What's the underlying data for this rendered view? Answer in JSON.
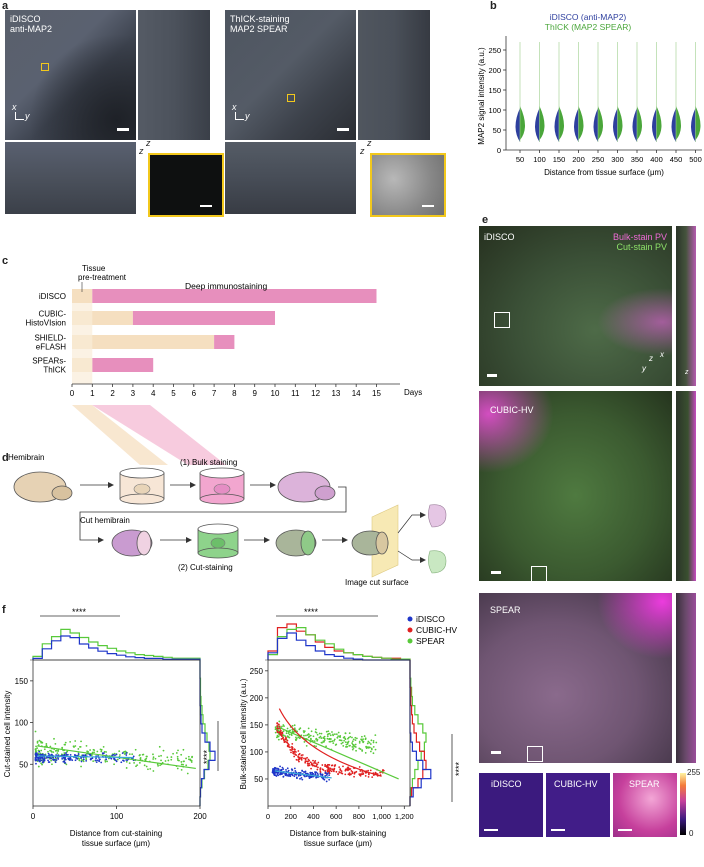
{
  "panels": {
    "a": "a",
    "b": "b",
    "c": "c",
    "d": "d",
    "e": "e",
    "f": "f"
  },
  "a": {
    "left_title_1": "iDISCO",
    "left_title_2": "anti-MAP2",
    "right_title_1": "ThICK-staining",
    "right_title_2": "MAP2 SPEAR",
    "axis_x": "x",
    "axis_y": "y",
    "axis_z": "z"
  },
  "b": {
    "legend": [
      "iDISCO (anti-MAP2)",
      "ThICK (MAP2 SPEAR)"
    ],
    "ylabel": "MAP2 signal intensity (a.u.)",
    "xlabel": "Distance from tissue surface (μm)",
    "yticks": [
      "0",
      "50",
      "100",
      "150",
      "200",
      "250"
    ],
    "xticks": [
      "50",
      "100",
      "150",
      "200",
      "250",
      "300",
      "350",
      "400",
      "450",
      "500"
    ],
    "colors": {
      "idisco": "#2e3f9e",
      "thick": "#4aa63a"
    }
  },
  "c": {
    "tissue_label_1": "Tissue",
    "tissue_label_2": "pre-treatment",
    "deep_label": "Deep immunostaining",
    "rows": [
      "iDISCO",
      "CUBIC-\nHistoVIsion",
      "SHIELD-\neFLASH",
      "SPEARs-\nThICK"
    ],
    "row_lines": [
      [
        "iDISCO"
      ],
      [
        "CUBIC-",
        "HistoVIsion"
      ],
      [
        "SHIELD-",
        "eFLASH"
      ],
      [
        "SPEARs-",
        "ThICK"
      ]
    ],
    "xticks": [
      "0",
      "1",
      "2",
      "3",
      "4",
      "5",
      "6",
      "7",
      "8",
      "9",
      "10",
      "11",
      "12",
      "13",
      "14",
      "15"
    ],
    "xlabel": "Days",
    "pretreat_end": [
      1,
      3,
      7,
      1
    ],
    "stain_end": [
      15,
      10,
      8,
      4
    ]
  },
  "d": {
    "hemibrain": "Hemibrain",
    "bulk": "(1) Bulk staining",
    "cut_hemibrain": "Cut hemibrain",
    "cut_staining": "(2) Cut-staining",
    "image_cut": "Image cut surface"
  },
  "e": {
    "labels": [
      "iDISCO",
      "CUBIC-HV",
      "SPEAR"
    ],
    "legend_bulk": "Bulk-stain PV",
    "legend_cut": "Cut-stain PV",
    "axis_x": "x",
    "axis_y": "y",
    "axis_z": "z",
    "bottom_labels": [
      "iDISCO",
      "CUBIC-HV",
      "SPEAR"
    ],
    "colorbar_max": "255",
    "colorbar_min": "0"
  },
  "f": {
    "left_ylabel": "Cut-stained cell intensity",
    "left_xlabel_1": "Distance from cut-staining",
    "left_xlabel_2": "tissue surface (μm)",
    "left_yticks": [
      "50",
      "100",
      "150"
    ],
    "left_xticks": [
      "0",
      "100",
      "200"
    ],
    "right_ylabel": "Bulk-stained cell intensity (a.u.)",
    "right_xlabel_1": "Distance from bulk-staining",
    "right_xlabel_2": "tissue surface (μm)",
    "right_yticks": [
      "50",
      "100",
      "150",
      "200",
      "250"
    ],
    "right_xticks": [
      "0",
      "200",
      "400",
      "600",
      "800",
      "1,000",
      "1,200"
    ],
    "sig": "****",
    "legend": [
      "iDISCO",
      "CUBIC-HV",
      "SPEAR"
    ],
    "colors": {
      "idisco": "#1f36c9",
      "cubic": "#e02020",
      "spear": "#58c93a"
    }
  }
}
